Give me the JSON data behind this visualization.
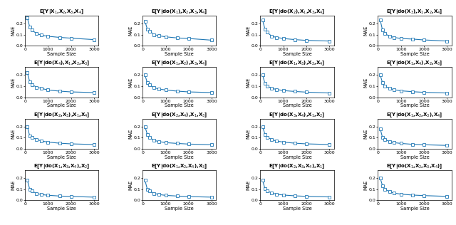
{
  "titles": [
    "E[Y|X$_1$,X$_2$,X$_3$,X$_4$]",
    "E[Y|do(X$_1$),X$_2$,X$_3$,X$_4$]",
    "E[Y|do(X$_2$),X$_1$,X$_3$,X$_4$]",
    "E[Y|do(X$_3$),X$_1$,X$_2$,X$_4$]",
    "E[Y|do(X$_4$),X$_1$,X$_2$,X$_3$]",
    "E[Y|do(X$_1$,X$_2$),X$_3$,X$_4$]",
    "E[Y|do(X$_1$,X$_3$),X$_2$,X$_4$]",
    "E[Y|do(X$_1$,X$_4$),X$_2$,X$_3$]",
    "E[Y|do(X$_2$,X$_3$),X$_1$,X$_4$]",
    "E[Y|do(X$_2$,X$_4$),X$_1$,X$_3$]",
    "E[Y|do(X$_3$,X$_4$),X$_1$,X$_2$]",
    "E[Y|do(X$_1$,X$_2$,X$_3$),X$_4$]",
    "E[Y|do(X$_1$,X$_3$,X$_4$),X$_2$]",
    "E[Y|do(X$_1$,X$_2$,X$_4$),X$_3$]",
    "E[Y|do(X$_2$,X$_3$,X$_4$),X$_1$]",
    "E[Y|do(X$_1$,X$_2$,X$_3$,X$_4$)]"
  ],
  "x": [
    100,
    200,
    300,
    500,
    700,
    1000,
    1500,
    2000,
    3000
  ],
  "curves": [
    [
      0.25,
      0.17,
      0.14,
      0.11,
      0.095,
      0.085,
      0.075,
      0.068,
      0.055
    ],
    [
      0.22,
      0.15,
      0.13,
      0.1,
      0.09,
      0.08,
      0.07,
      0.065,
      0.05
    ],
    [
      0.23,
      0.15,
      0.12,
      0.085,
      0.075,
      0.065,
      0.055,
      0.048,
      0.042
    ],
    [
      0.23,
      0.14,
      0.11,
      0.085,
      0.075,
      0.065,
      0.06,
      0.052,
      0.042
    ],
    [
      0.22,
      0.14,
      0.115,
      0.09,
      0.08,
      0.065,
      0.055,
      0.048,
      0.042
    ],
    [
      0.2,
      0.13,
      0.11,
      0.085,
      0.075,
      0.065,
      0.055,
      0.048,
      0.042
    ],
    [
      0.2,
      0.125,
      0.1,
      0.08,
      0.07,
      0.06,
      0.052,
      0.046,
      0.038
    ],
    [
      0.2,
      0.13,
      0.1,
      0.08,
      0.068,
      0.058,
      0.05,
      0.044,
      0.038
    ],
    [
      0.2,
      0.115,
      0.1,
      0.085,
      0.07,
      0.06,
      0.05,
      0.044,
      0.038
    ],
    [
      0.2,
      0.13,
      0.1,
      0.075,
      0.065,
      0.055,
      0.048,
      0.042,
      0.036
    ],
    [
      0.2,
      0.13,
      0.105,
      0.082,
      0.07,
      0.06,
      0.05,
      0.044,
      0.038
    ],
    [
      0.18,
      0.1,
      0.085,
      0.065,
      0.055,
      0.048,
      0.04,
      0.036,
      0.03
    ],
    [
      0.18,
      0.1,
      0.082,
      0.062,
      0.052,
      0.045,
      0.038,
      0.034,
      0.028
    ],
    [
      0.18,
      0.1,
      0.082,
      0.062,
      0.052,
      0.044,
      0.038,
      0.033,
      0.028
    ],
    [
      0.18,
      0.105,
      0.085,
      0.065,
      0.055,
      0.047,
      0.04,
      0.035,
      0.03
    ],
    [
      0.2,
      0.13,
      0.1,
      0.078,
      0.065,
      0.055,
      0.047,
      0.042,
      0.035
    ]
  ],
  "line_color": "#1f77b4",
  "marker": "s",
  "markersize": 2.5,
  "linewidth": 0.8,
  "xlabel": "Sample Size",
  "ylabel": "MAE",
  "ylim": [
    0,
    0.27
  ],
  "xlim": [
    0,
    3200
  ],
  "yticks": [
    0,
    0.1,
    0.2
  ],
  "xticks": [
    0,
    1000,
    2000,
    3000
  ],
  "title_fontsize": 5.0,
  "axis_fontsize": 4.8,
  "tick_fontsize": 4.5,
  "bg_color": "#ffffff"
}
